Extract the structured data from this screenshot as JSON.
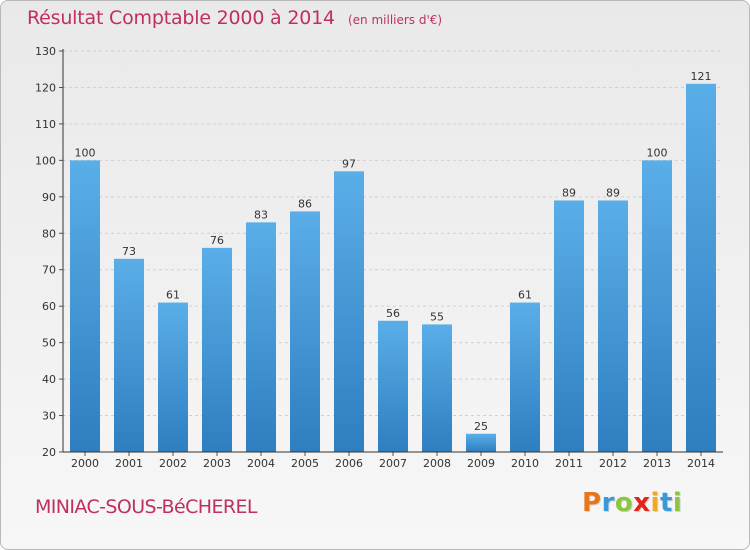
{
  "title": "Résultat Comptable 2000 à 2014",
  "unit_note": "(en milliers d'€)",
  "commune": "MINIAC-SOUS-BéCHEREL",
  "brand": {
    "letters": [
      "P",
      "r",
      "o",
      "x",
      "i",
      "t",
      "i"
    ],
    "colors": [
      "#e8751a",
      "#3a9ad9",
      "#8cc63f",
      "#e2231a",
      "#f5a623",
      "#3a9ad9",
      "#8cc63f"
    ]
  },
  "colors": {
    "bar_light": "#5aaee8",
    "bar_dark": "#2f7ec0",
    "text": "#c0305f",
    "axis": "#333333"
  },
  "chart_data": {
    "type": "bar",
    "title": "Résultat Comptable 2000 à 2014",
    "ylabel": "(en milliers d'€)",
    "xlabel": "",
    "categories": [
      "2000",
      "2001",
      "2002",
      "2003",
      "2004",
      "2005",
      "2006",
      "2007",
      "2008",
      "2009",
      "2010",
      "2011",
      "2012",
      "2013",
      "2014"
    ],
    "values": [
      100,
      73,
      61,
      76,
      83,
      86,
      97,
      56,
      55,
      25,
      61,
      89,
      89,
      100,
      121
    ],
    "ylim": [
      20,
      130
    ],
    "yticks": [
      20,
      30,
      40,
      50,
      60,
      70,
      80,
      90,
      100,
      110,
      120,
      130
    ],
    "grid": true
  }
}
